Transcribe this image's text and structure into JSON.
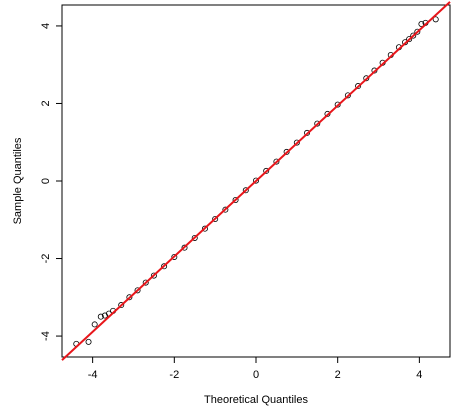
{
  "chart_data": {
    "type": "scatter",
    "xlabel": "Theoretical Quantiles",
    "ylabel": "Sample Quantiles",
    "x": [
      -4.4,
      -4.1,
      -3.95,
      -3.8,
      -3.7,
      -3.6,
      -3.5,
      -3.3,
      -3.1,
      -2.9,
      -2.7,
      -2.5,
      -2.25,
      -2,
      -1.75,
      -1.5,
      -1.25,
      -1,
      -0.75,
      -0.5,
      -0.25,
      0,
      0.25,
      0.5,
      0.75,
      1,
      1.25,
      1.5,
      1.75,
      2,
      2.25,
      2.5,
      2.7,
      2.9,
      3.1,
      3.3,
      3.5,
      3.65,
      3.75,
      3.85,
      3.95,
      4.05,
      4.15,
      4.4
    ],
    "values": [
      -4.2,
      -4.15,
      -3.7,
      -3.5,
      -3.47,
      -3.42,
      -3.35,
      -3.2,
      -3.0,
      -2.82,
      -2.62,
      -2.44,
      -2.2,
      -1.96,
      -1.72,
      -1.47,
      -1.23,
      -0.98,
      -0.74,
      -0.49,
      -0.24,
      0.01,
      0.26,
      0.5,
      0.75,
      0.99,
      1.24,
      1.48,
      1.73,
      1.97,
      2.21,
      2.45,
      2.65,
      2.85,
      3.05,
      3.25,
      3.45,
      3.58,
      3.66,
      3.75,
      3.85,
      4.05,
      4.08,
      4.17
    ],
    "color": "#000000",
    "reference_line": {
      "x": [
        -4.75,
        4.75
      ],
      "values": [
        -4.62,
        4.62
      ],
      "color": "#e8161b"
    },
    "xlim": [
      -4.75,
      4.75
    ],
    "ylim": [
      -4.54,
      4.54
    ],
    "xticks": [
      -4,
      -2,
      0,
      2,
      4
    ],
    "yticks": [
      -4,
      -2,
      0,
      2,
      4
    ]
  }
}
